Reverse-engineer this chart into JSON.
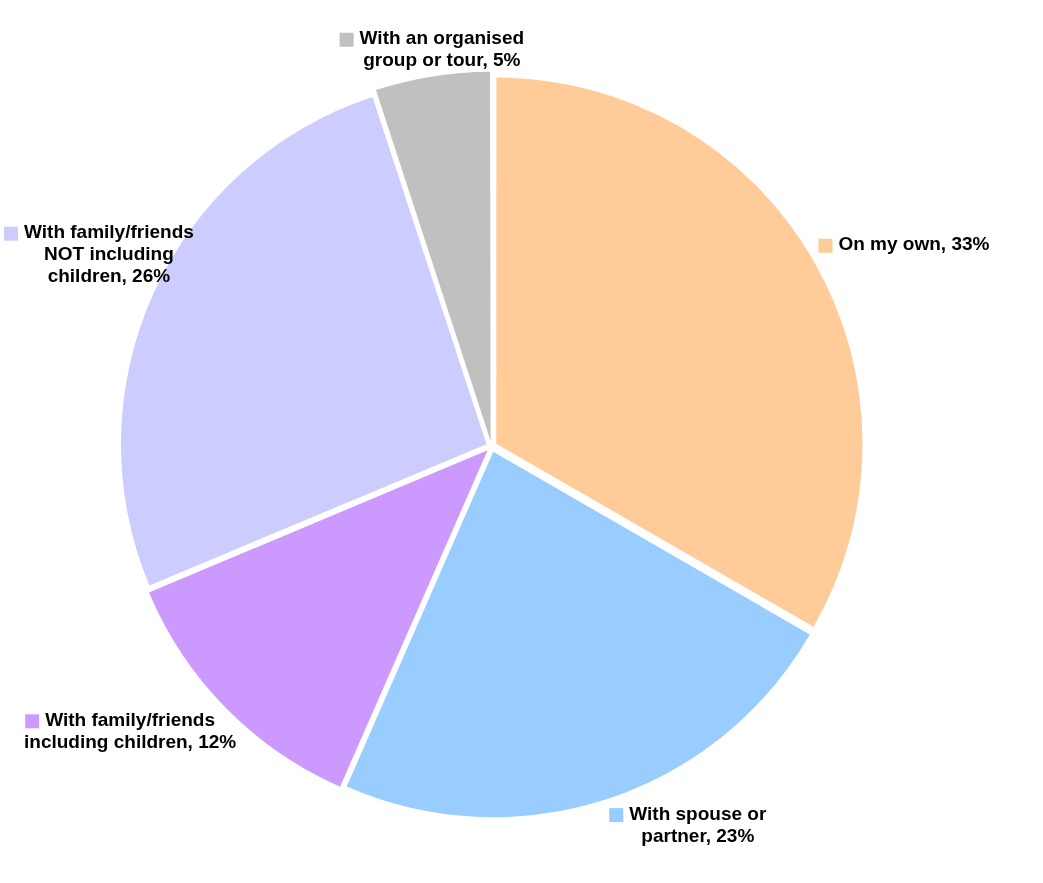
{
  "chart_data": {
    "type": "pie",
    "categories": [
      "On my own",
      "With spouse or partner",
      "With family/friends including children",
      "With family/friends NOT including children",
      "With an organised group or tour"
    ],
    "values": [
      33,
      23,
      12,
      26,
      5
    ],
    "value_labels": [
      "33%",
      "23%",
      "12%",
      "26%",
      "5%"
    ],
    "colors": [
      "#ffcc99",
      "#99ccff",
      "#cc99ff",
      "#ccccff",
      "#c0c0c0"
    ],
    "legend": "right"
  }
}
